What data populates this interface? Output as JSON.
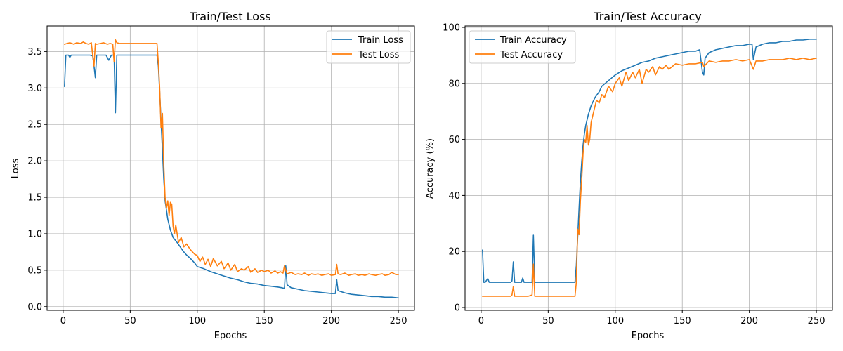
{
  "chart_data": [
    {
      "type": "line",
      "title": "Train/Test Loss",
      "xlabel": "Epochs",
      "ylabel": "Loss",
      "xlim": [
        -12,
        262
      ],
      "ylim": [
        -0.05,
        3.85
      ],
      "xticks": [
        0,
        50,
        100,
        150,
        200,
        250
      ],
      "yticks": [
        0.0,
        0.5,
        1.0,
        1.5,
        2.0,
        2.5,
        3.0,
        3.5
      ],
      "ytick_decimals": 1,
      "grid": true,
      "legend": "top-right",
      "series": [
        {
          "name": "Train Loss",
          "color": "#1f77b4",
          "x": [
            1,
            2,
            4,
            5,
            6,
            8,
            10,
            12,
            15,
            18,
            20,
            22,
            23,
            24,
            25,
            27,
            30,
            32,
            34,
            36,
            38,
            39,
            40,
            42,
            45,
            50,
            55,
            60,
            65,
            70,
            71,
            72,
            73,
            74,
            75,
            76,
            77,
            78,
            80,
            82,
            85,
            88,
            90,
            92,
            95,
            98,
            100,
            105,
            110,
            115,
            120,
            125,
            130,
            135,
            140,
            145,
            150,
            155,
            160,
            163,
            165,
            166,
            167,
            170,
            175,
            180,
            185,
            190,
            195,
            200,
            203,
            204,
            205,
            210,
            215,
            220,
            225,
            230,
            235,
            240,
            245,
            250
          ],
          "values": [
            3.02,
            3.45,
            3.45,
            3.42,
            3.45,
            3.45,
            3.45,
            3.45,
            3.45,
            3.45,
            3.45,
            3.44,
            3.3,
            3.14,
            3.45,
            3.45,
            3.45,
            3.45,
            3.38,
            3.45,
            3.45,
            2.66,
            3.45,
            3.45,
            3.45,
            3.45,
            3.45,
            3.45,
            3.45,
            3.45,
            3.3,
            2.95,
            2.55,
            2.15,
            1.75,
            1.45,
            1.33,
            1.2,
            1.05,
            0.95,
            0.88,
            0.8,
            0.75,
            0.71,
            0.66,
            0.6,
            0.55,
            0.52,
            0.48,
            0.45,
            0.42,
            0.39,
            0.37,
            0.34,
            0.32,
            0.31,
            0.29,
            0.28,
            0.27,
            0.26,
            0.25,
            0.56,
            0.3,
            0.26,
            0.24,
            0.22,
            0.21,
            0.2,
            0.19,
            0.18,
            0.18,
            0.37,
            0.22,
            0.19,
            0.17,
            0.16,
            0.15,
            0.14,
            0.14,
            0.13,
            0.13,
            0.12
          ]
        },
        {
          "name": "Test Loss",
          "color": "#ff7f0e",
          "x": [
            1,
            3,
            5,
            8,
            10,
            13,
            15,
            17,
            19,
            21,
            22,
            23,
            24,
            25,
            28,
            30,
            33,
            35,
            37,
            38,
            39,
            40,
            42,
            45,
            50,
            55,
            60,
            65,
            70,
            71,
            72,
            73,
            74,
            75,
            76,
            77,
            78,
            79,
            80,
            81,
            82,
            83,
            84,
            86,
            88,
            90,
            92,
            95,
            98,
            100,
            102,
            104,
            106,
            108,
            110,
            112,
            115,
            118,
            120,
            123,
            125,
            128,
            130,
            133,
            135,
            138,
            140,
            143,
            145,
            148,
            150,
            153,
            155,
            158,
            160,
            162,
            164,
            165,
            166,
            167,
            170,
            173,
            175,
            178,
            180,
            183,
            185,
            188,
            190,
            193,
            195,
            198,
            200,
            203,
            204,
            205,
            207,
            210,
            213,
            215,
            218,
            220,
            223,
            225,
            228,
            230,
            233,
            235,
            238,
            240,
            243,
            245,
            248,
            250
          ],
          "values": [
            3.6,
            3.61,
            3.62,
            3.6,
            3.62,
            3.61,
            3.63,
            3.61,
            3.6,
            3.62,
            3.45,
            3.3,
            3.61,
            3.6,
            3.61,
            3.62,
            3.6,
            3.61,
            3.6,
            3.36,
            3.66,
            3.62,
            3.61,
            3.61,
            3.61,
            3.61,
            3.61,
            3.61,
            3.61,
            3.35,
            3.0,
            2.45,
            2.65,
            1.95,
            1.5,
            1.35,
            1.45,
            1.25,
            1.43,
            1.4,
            1.1,
            1.0,
            1.12,
            0.88,
            0.95,
            0.82,
            0.86,
            0.78,
            0.72,
            0.7,
            0.62,
            0.68,
            0.58,
            0.65,
            0.55,
            0.66,
            0.56,
            0.62,
            0.52,
            0.6,
            0.5,
            0.58,
            0.48,
            0.52,
            0.5,
            0.55,
            0.47,
            0.52,
            0.47,
            0.5,
            0.48,
            0.5,
            0.46,
            0.49,
            0.46,
            0.48,
            0.46,
            0.56,
            0.5,
            0.45,
            0.47,
            0.44,
            0.45,
            0.44,
            0.46,
            0.43,
            0.45,
            0.44,
            0.45,
            0.43,
            0.44,
            0.45,
            0.43,
            0.44,
            0.58,
            0.45,
            0.44,
            0.46,
            0.43,
            0.44,
            0.45,
            0.43,
            0.44,
            0.43,
            0.45,
            0.44,
            0.43,
            0.44,
            0.45,
            0.43,
            0.44,
            0.47,
            0.44,
            0.44
          ]
        }
      ]
    },
    {
      "type": "line",
      "title": "Train/Test Accuracy",
      "xlabel": "Epochs",
      "ylabel": "Accuracy (%)",
      "xlim": [
        -12,
        262
      ],
      "ylim": [
        -1,
        100.5
      ],
      "xticks": [
        0,
        50,
        100,
        150,
        200,
        250
      ],
      "yticks": [
        0,
        20,
        40,
        60,
        80,
        100
      ],
      "ytick_decimals": 0,
      "grid": true,
      "legend": "top-left",
      "series": [
        {
          "name": "Train Accuracy",
          "color": "#1f77b4",
          "x": [
            1,
            2,
            3,
            5,
            6,
            8,
            10,
            12,
            15,
            18,
            20,
            22,
            23,
            24,
            25,
            28,
            30,
            31,
            32,
            35,
            38,
            39,
            40,
            42,
            45,
            50,
            55,
            60,
            65,
            70,
            71,
            72,
            73,
            74,
            75,
            76,
            77,
            78,
            80,
            82,
            85,
            88,
            90,
            95,
            100,
            105,
            110,
            115,
            120,
            125,
            130,
            135,
            140,
            145,
            150,
            155,
            160,
            163,
            165,
            166,
            167,
            170,
            175,
            180,
            185,
            190,
            195,
            200,
            202,
            203,
            205,
            210,
            215,
            220,
            225,
            230,
            235,
            240,
            245,
            250
          ],
          "values": [
            20.5,
            9.0,
            9.0,
            10.3,
            9.0,
            9.0,
            9.0,
            9.0,
            9.0,
            9.0,
            9.0,
            9.0,
            9.5,
            16.3,
            9.0,
            9.0,
            9.0,
            10.5,
            9.0,
            9.0,
            9.0,
            25.8,
            9.0,
            9.0,
            9.0,
            9.0,
            9.0,
            9.0,
            9.0,
            9.0,
            15.0,
            25.0,
            35.0,
            45.0,
            52.0,
            58.0,
            62.0,
            65.0,
            69.0,
            72.0,
            75.0,
            77.0,
            79.0,
            81.0,
            83.0,
            84.5,
            85.5,
            86.5,
            87.5,
            88.0,
            89.0,
            89.5,
            90.0,
            90.5,
            91.0,
            91.5,
            91.5,
            92.0,
            84.0,
            83.0,
            89.0,
            91.0,
            92.0,
            92.5,
            93.0,
            93.5,
            93.5,
            94.0,
            94.0,
            88.5,
            93.0,
            94.0,
            94.5,
            94.5,
            95.0,
            95.0,
            95.5,
            95.5,
            95.8,
            95.8
          ]
        },
        {
          "name": "Test Accuracy",
          "color": "#ff7f0e",
          "x": [
            1,
            5,
            10,
            15,
            20,
            22,
            23,
            24,
            25,
            30,
            35,
            38,
            39,
            40,
            45,
            50,
            55,
            60,
            65,
            69,
            70,
            71,
            72,
            73,
            74,
            75,
            76,
            77,
            78,
            79,
            80,
            81,
            82,
            84,
            86,
            88,
            90,
            92,
            95,
            98,
            100,
            103,
            105,
            108,
            110,
            113,
            115,
            118,
            120,
            123,
            125,
            128,
            130,
            133,
            135,
            138,
            140,
            145,
            150,
            155,
            160,
            165,
            166,
            170,
            175,
            180,
            185,
            190,
            195,
            200,
            203,
            205,
            210,
            215,
            220,
            225,
            230,
            235,
            240,
            245,
            250
          ],
          "values": [
            4.0,
            4.0,
            4.0,
            4.0,
            4.0,
            4.0,
            4.5,
            7.5,
            4.0,
            4.0,
            4.0,
            4.5,
            15.5,
            4.0,
            4.0,
            4.0,
            4.0,
            4.0,
            4.0,
            4.0,
            4.0,
            9.0,
            28.0,
            26.0,
            38.0,
            46.0,
            55.0,
            60.0,
            59.0,
            65.0,
            58.0,
            60.0,
            66.0,
            70.0,
            74.0,
            73.0,
            76.0,
            75.0,
            79.0,
            77.0,
            80.0,
            82.0,
            79.0,
            84.0,
            81.0,
            84.0,
            82.0,
            85.0,
            80.0,
            85.0,
            84.0,
            86.0,
            83.0,
            86.0,
            85.0,
            86.5,
            85.0,
            87.0,
            86.5,
            87.0,
            87.0,
            87.5,
            86.0,
            88.0,
            87.5,
            88.0,
            88.0,
            88.5,
            88.0,
            88.5,
            85.0,
            88.0,
            88.0,
            88.5,
            88.5,
            88.5,
            89.0,
            88.5,
            89.0,
            88.5,
            89.0
          ]
        }
      ]
    }
  ]
}
